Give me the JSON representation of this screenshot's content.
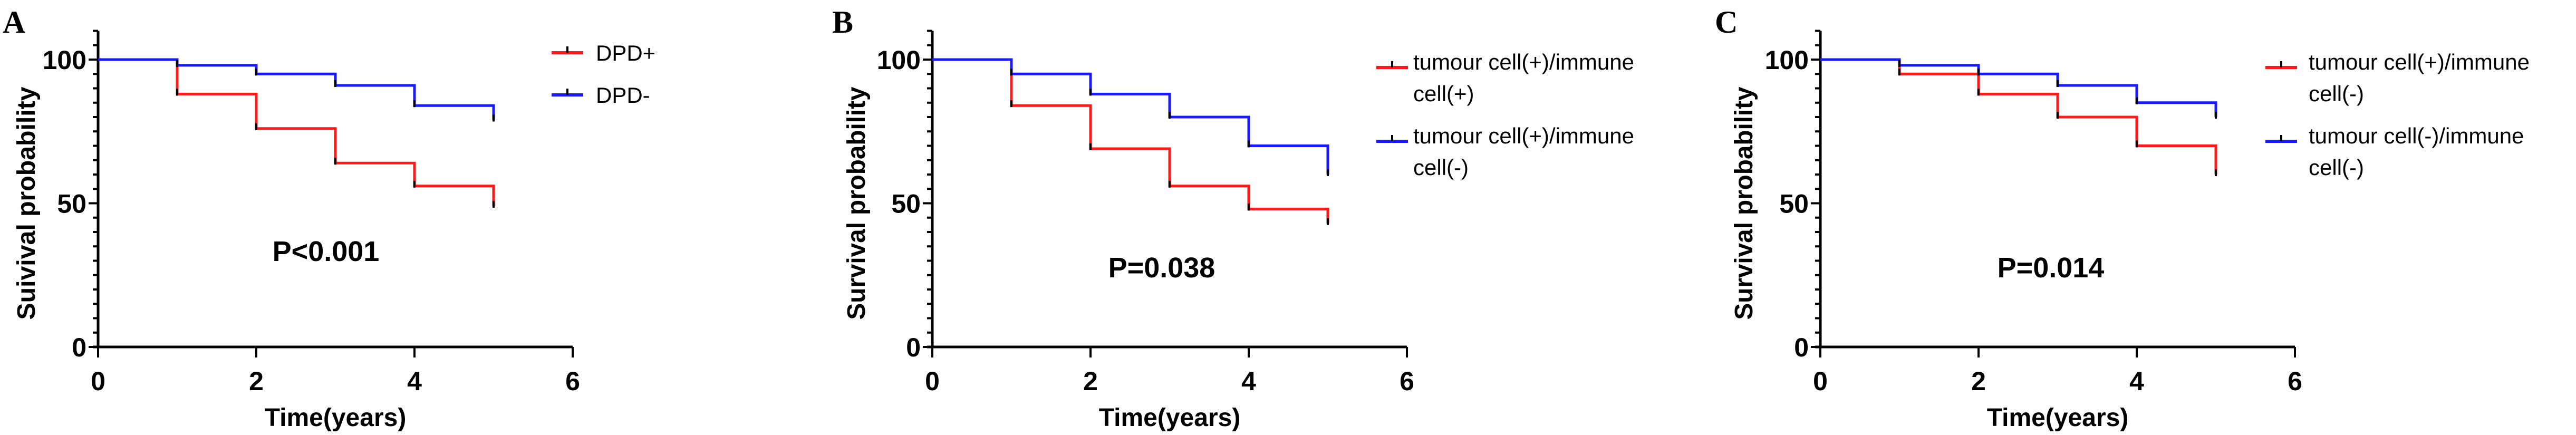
{
  "chart_data": [
    {
      "panel_label": "A",
      "type": "line",
      "subtype": "kaplan-meier step",
      "xlabel": "Time(years)",
      "ylabel": "Suivival probability",
      "xlim": [
        0,
        6
      ],
      "ylim": [
        0,
        110
      ],
      "xticks": [
        "0",
        "2",
        "4",
        "6"
      ],
      "yticks": [
        "0",
        "50",
        "100"
      ],
      "annotation": "P<0.001",
      "legend_position": "right",
      "x": [
        0,
        1,
        2,
        3,
        4,
        5
      ],
      "series": [
        {
          "name": "DPD+",
          "color": "#ff1a1a",
          "values": [
            100,
            88,
            76,
            64,
            56,
            49
          ]
        },
        {
          "name": "DPD-",
          "color": "#1a1aff",
          "values": [
            100,
            98,
            95,
            91,
            84,
            79
          ]
        }
      ]
    },
    {
      "panel_label": "B",
      "type": "line",
      "subtype": "kaplan-meier step",
      "xlabel": "Time(years)",
      "ylabel": "Survival probability",
      "xlim": [
        0,
        6
      ],
      "ylim": [
        0,
        110
      ],
      "xticks": [
        "0",
        "2",
        "4",
        "6"
      ],
      "yticks": [
        "0",
        "50",
        "100"
      ],
      "annotation": "P=0.038",
      "legend_position": "right",
      "x": [
        0,
        1,
        2,
        3,
        4,
        5
      ],
      "series": [
        {
          "name": "tumour cell(+)/immune cell(+)",
          "name_lines": [
            "tumour cell(+)/immune",
            "cell(+)"
          ],
          "color": "#ff1a1a",
          "values": [
            100,
            84,
            69,
            56,
            48,
            43
          ]
        },
        {
          "name": "tumour cell(+)/immune cell(-)",
          "name_lines": [
            "tumour cell(+)/immune",
            "cell(-)"
          ],
          "color": "#1a1aff",
          "values": [
            100,
            95,
            88,
            80,
            70,
            60
          ]
        }
      ]
    },
    {
      "panel_label": "C",
      "type": "line",
      "subtype": "kaplan-meier step",
      "xlabel": "Time(years)",
      "ylabel": "Survival probability",
      "xlim": [
        0,
        6
      ],
      "ylim": [
        0,
        110
      ],
      "xticks": [
        "0",
        "2",
        "4",
        "6"
      ],
      "yticks": [
        "0",
        "50",
        "100"
      ],
      "annotation": "P=0.014",
      "legend_position": "right",
      "x": [
        0,
        1,
        2,
        3,
        4,
        5
      ],
      "series": [
        {
          "name": "tumour cell(+)/immune cell(-)",
          "name_lines": [
            "tumour cell(+)/immune",
            "cell(-)"
          ],
          "color": "#ff1a1a",
          "values": [
            100,
            95,
            88,
            80,
            70,
            60
          ]
        },
        {
          "name": "tumour cell(-)/immune cell(-)",
          "name_lines": [
            "tumour cell(-)/immune",
            "cell(-)"
          ],
          "color": "#1a1aff",
          "values": [
            100,
            98,
            95,
            91,
            85,
            80
          ]
        }
      ]
    }
  ]
}
